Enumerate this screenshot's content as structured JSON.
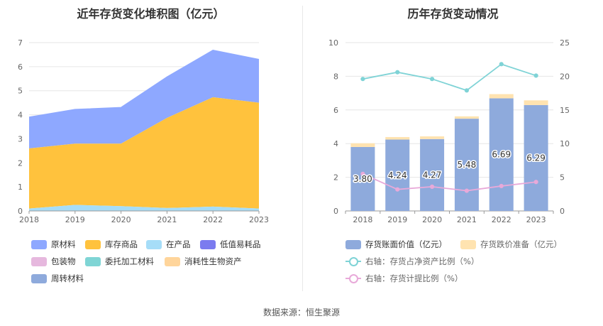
{
  "source": "数据来源：恒生聚源",
  "colors": {
    "raw_material": "#8ea8ff",
    "goods": "#ffc23d",
    "wip": "#a6ddf8",
    "low_value": "#7b7bef",
    "packaging": "#e6b8de",
    "consigned": "#7fd5d5",
    "bio_assets": "#ffd59b",
    "turnover": "#8eaadc",
    "book_value": "#8eaadc",
    "impairment": "#ffe3b0",
    "ratio_line": "#7fd3d6",
    "provision_line": "#e8a9d9"
  },
  "chart_data": [
    {
      "type": "area",
      "title": "近年存货变化堆积图（亿元）",
      "x": [
        "2018",
        "2019",
        "2020",
        "2021",
        "2022",
        "2023"
      ],
      "ylim": [
        0,
        7
      ],
      "yticks": [
        0,
        1,
        2,
        3,
        4,
        5,
        6,
        7
      ],
      "grid": true,
      "stacked": true,
      "series": [
        {
          "name": "在产品",
          "values": [
            0.1,
            0.25,
            0.2,
            0.12,
            0.18,
            0.1
          ]
        },
        {
          "name": "库存商品",
          "values": [
            2.5,
            2.55,
            2.6,
            3.75,
            4.55,
            4.4
          ]
        },
        {
          "name": "原材料",
          "values": [
            1.3,
            1.42,
            1.5,
            1.7,
            1.95,
            1.8
          ]
        },
        {
          "name": "低值易耗品",
          "values": [
            0,
            0,
            0,
            0,
            0,
            0
          ]
        },
        {
          "name": "包装物",
          "values": [
            0,
            0,
            0,
            0,
            0,
            0
          ]
        },
        {
          "name": "委托加工材料",
          "values": [
            0,
            0,
            0,
            0,
            0,
            0
          ]
        },
        {
          "name": "消耗性生物资产",
          "values": [
            0,
            0,
            0,
            0,
            0,
            0
          ]
        },
        {
          "name": "周转材料",
          "values": [
            0,
            0,
            0,
            0,
            0,
            0
          ]
        }
      ],
      "legend": [
        "原材料",
        "库存商品",
        "在产品",
        "低值易耗品",
        "包装物",
        "委托加工材料",
        "消耗性生物资产",
        "周转材料"
      ],
      "legend_position": "bottom"
    },
    {
      "type": "bar",
      "title": "历年存货变动情况",
      "x": [
        "2018",
        "2019",
        "2020",
        "2021",
        "2022",
        "2023"
      ],
      "ylim": [
        0,
        10
      ],
      "yticks": [
        0,
        2,
        4,
        6,
        8,
        10
      ],
      "y2lim": [
        0,
        25
      ],
      "y2ticks": [
        0,
        5,
        10,
        15,
        20,
        25
      ],
      "grid": true,
      "series": [
        {
          "name": "存货账面价值（亿元）",
          "kind": "bar",
          "values": [
            3.8,
            4.24,
            4.27,
            5.48,
            6.69,
            6.29
          ],
          "labels": [
            "3.80",
            "4.24",
            "4.27",
            "5.48",
            "6.69",
            "6.29"
          ]
        },
        {
          "name": "存货跌价准备（亿元）",
          "kind": "bar-stack",
          "values": [
            0.22,
            0.15,
            0.16,
            0.14,
            0.25,
            0.28
          ]
        },
        {
          "name": "右轴：存货占净资产比例（%）",
          "kind": "line",
          "axis": "right",
          "values": [
            19.6,
            20.6,
            19.6,
            17.9,
            21.8,
            20.1
          ]
        },
        {
          "name": "右轴：存货计提比例（%）",
          "kind": "line",
          "axis": "right",
          "values": [
            5.5,
            3.2,
            3.6,
            3.0,
            3.7,
            4.3
          ]
        }
      ],
      "legend_position": "bottom"
    }
  ]
}
